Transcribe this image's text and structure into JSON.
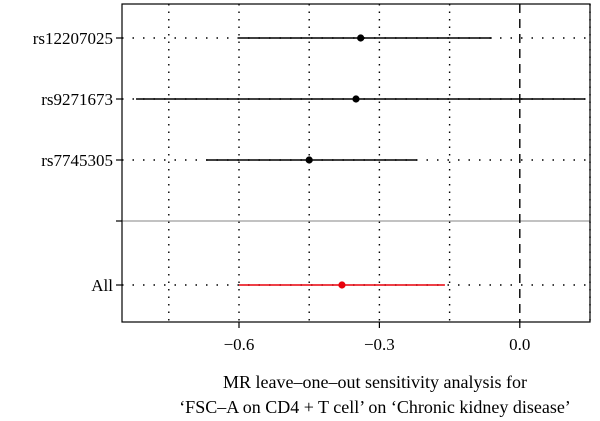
{
  "chart_data": {
    "type": "forest",
    "xlabel_line1": "MR leave–one–out sensitivity analysis for",
    "xlabel_line2": "‘FSC–A on CD4 + T cell’ on ‘Chronic kidney disease’",
    "xlim": [
      -0.85,
      0.15
    ],
    "x_ticks": [
      {
        "value": -0.6,
        "label": "−0.6"
      },
      {
        "value": -0.3,
        "label": "−0.3"
      },
      {
        "value": 0.0,
        "label": "0.0"
      }
    ],
    "x_gridlines": [
      -0.75,
      -0.6,
      -0.45,
      -0.3,
      -0.15,
      0.0,
      0.15
    ],
    "reference_line": 0.0,
    "snps": [
      {
        "label": "rs12207025",
        "estimate": -0.34,
        "lower": -0.6,
        "upper": -0.06
      },
      {
        "label": "rs9271673",
        "estimate": -0.35,
        "lower": -0.82,
        "upper": 0.14
      },
      {
        "label": "rs7745305",
        "estimate": -0.45,
        "lower": -0.67,
        "upper": -0.22
      }
    ],
    "overall": {
      "label": "All",
      "estimate": -0.38,
      "lower": -0.6,
      "upper": -0.16
    },
    "colors": {
      "snp": "#000000",
      "overall": "#e8000b",
      "separator": "#9e9e9e",
      "grid": "#000000"
    }
  }
}
